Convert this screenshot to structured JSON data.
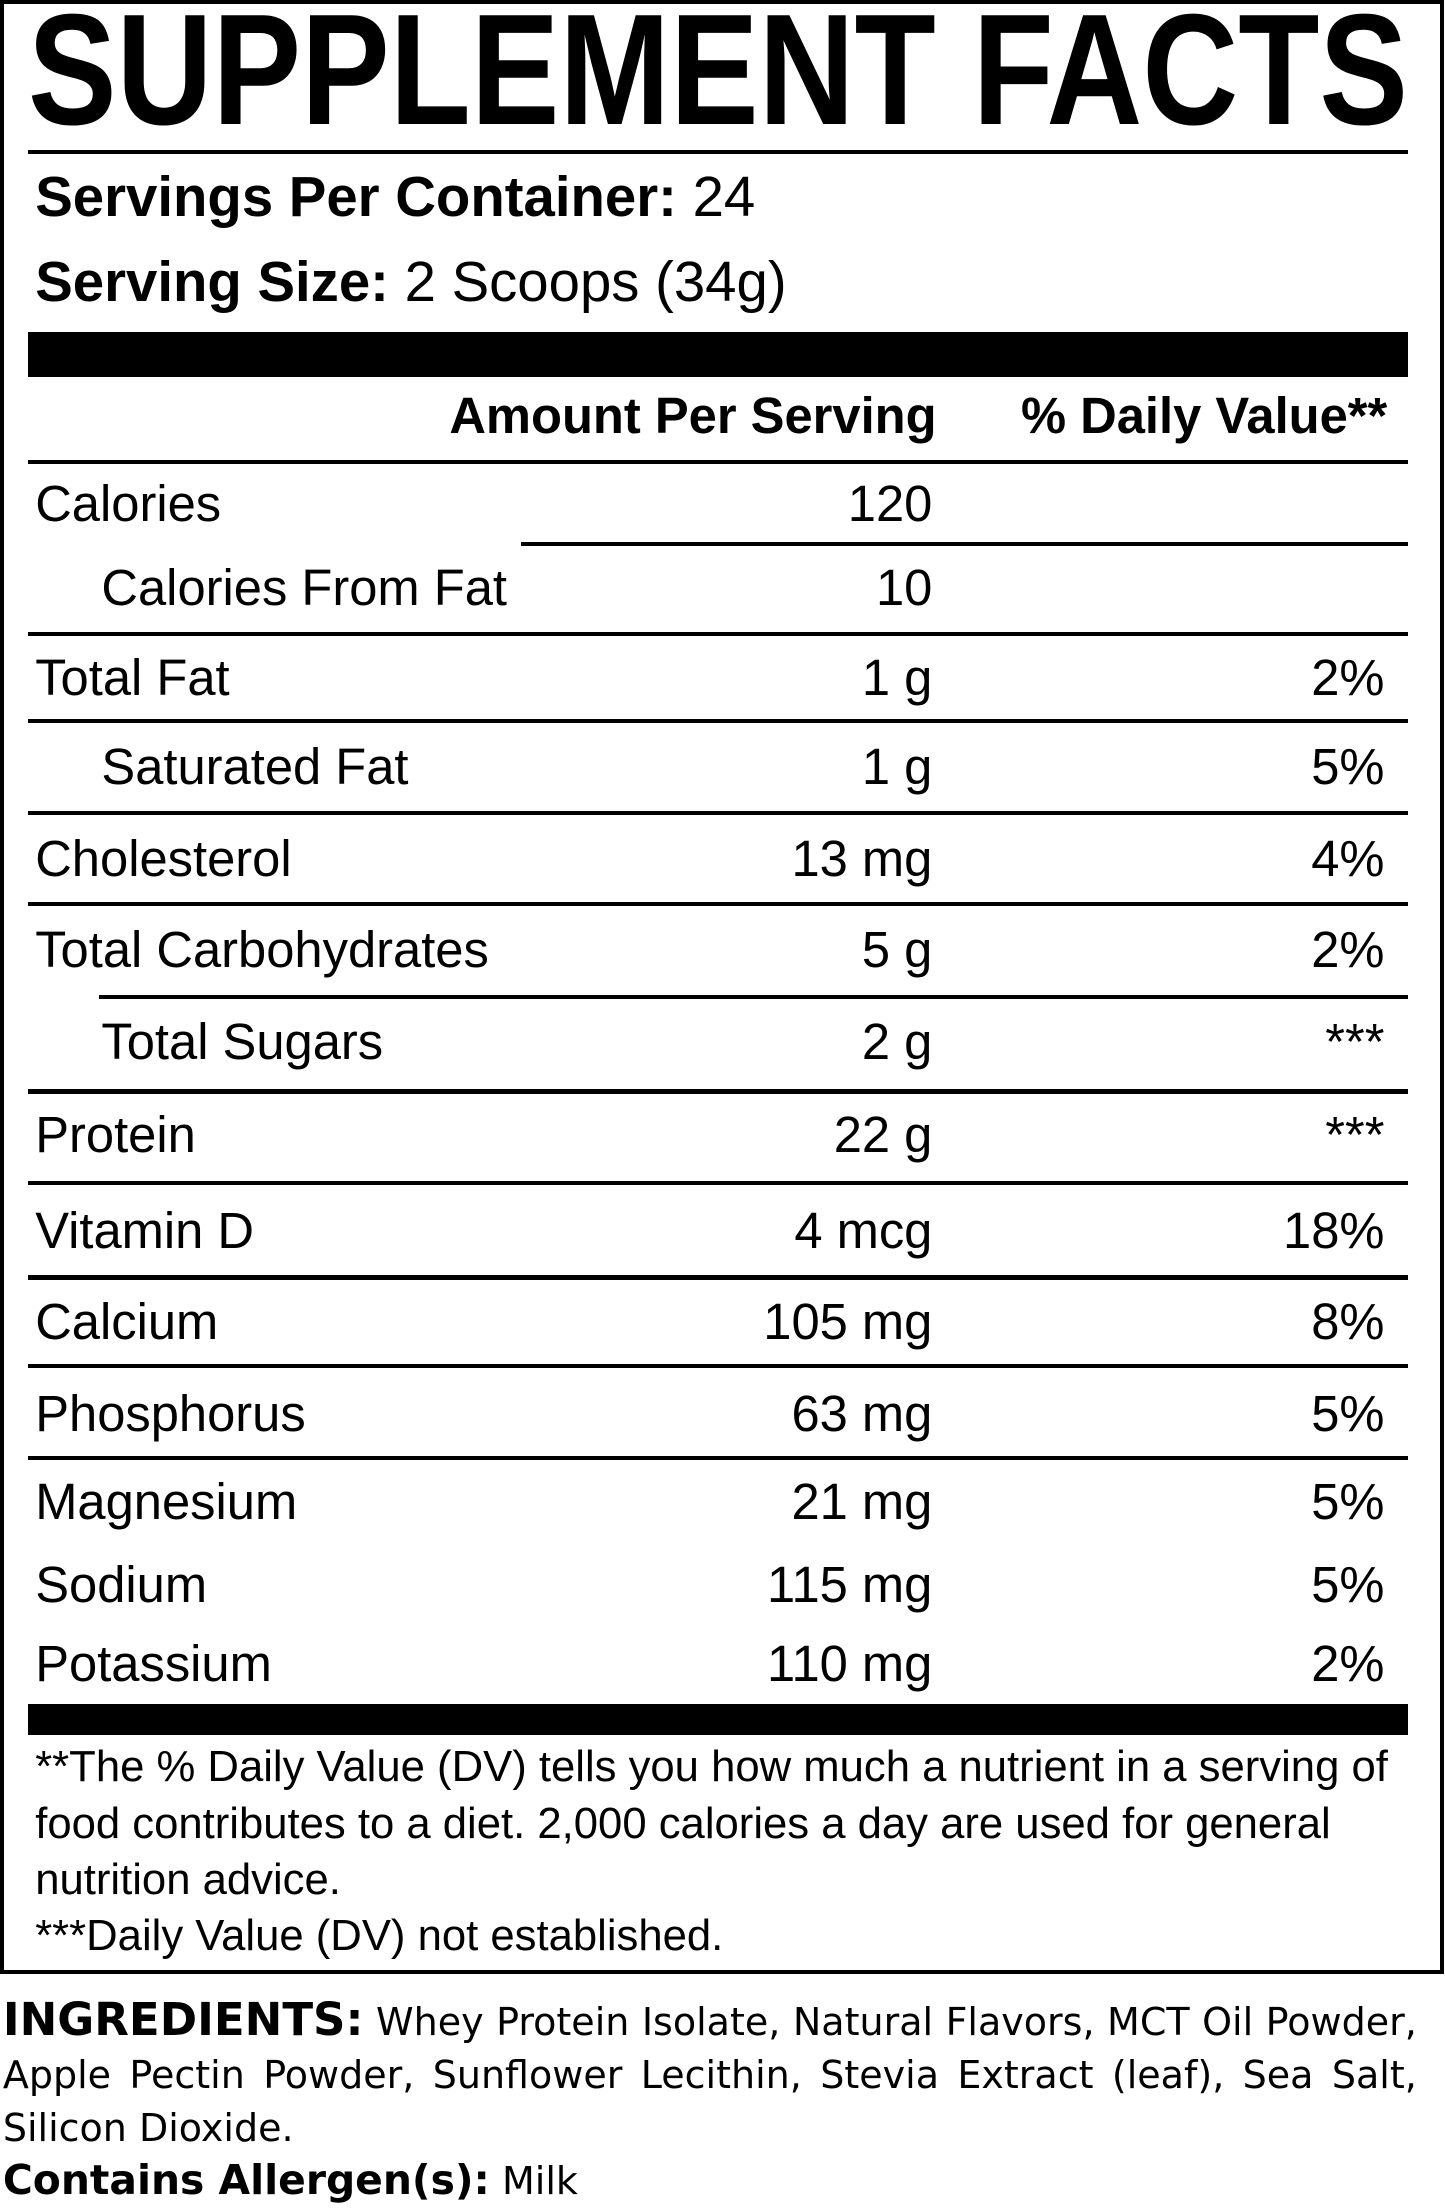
{
  "header": {
    "title": "SUPPLEMENT FACTS",
    "servings_label": "Servings Per Container:",
    "servings_value": "24",
    "serving_size_label": "Serving Size:",
    "serving_size_value": "2 Scoops (34g)"
  },
  "table": {
    "columns": [
      "Amount Per Serving",
      "% Daily Value**"
    ],
    "rows": [
      {
        "name": "Calories",
        "amount": "120"
      },
      {
        "name": "Calories From Fat",
        "amount": "10",
        "sub": true
      },
      {
        "name": "Total Fat",
        "amount": "1 g",
        "dv": "2%"
      },
      {
        "name": "Saturated Fat",
        "amount": "1 g",
        "dv": "5%",
        "sub": true
      },
      {
        "name": "Cholesterol",
        "amount": "13 mg",
        "dv": "4%"
      },
      {
        "name": "Total Carbohydrates",
        "amount": "5 g",
        "dv": "2%"
      },
      {
        "name": "Total Sugars",
        "amount": "2 g",
        "dv": "***",
        "sub": true
      },
      {
        "name": "Protein",
        "amount": "22 g",
        "dv": "***"
      },
      {
        "name": "Vitamin D",
        "amount": "4 mcg",
        "dv": "18%"
      },
      {
        "name": "Calcium",
        "amount": "105 mg",
        "dv": "8%"
      },
      {
        "name": "Phosphorus",
        "amount": "63 mg",
        "dv": "5%"
      },
      {
        "name": "Magnesium",
        "amount": "21 mg",
        "dv": "5%"
      },
      {
        "name": "Sodium",
        "amount": "115 mg",
        "dv": "5%"
      },
      {
        "name": "Potassium",
        "amount": "110 mg",
        "dv": "2%"
      }
    ]
  },
  "footnotes": [
    "**The % Daily Value (DV) tells you how much a nutrient in a serving of food contributes to a diet. 2,000 calories a day are used for general nutrition advice.",
    "***Daily Value (DV) not established."
  ],
  "ingredients": {
    "label": "INGREDIENTS:",
    "text": "Whey Protein Isolate, Natural Flavors, MCT Oil Powder, Apple Pectin Powder, Sunflower Lecithin, Stevia Extract (leaf), Sea Salt, Silicon Dioxide."
  },
  "allergens": {
    "label": "Contains Allergen(s):",
    "text": "Milk"
  }
}
